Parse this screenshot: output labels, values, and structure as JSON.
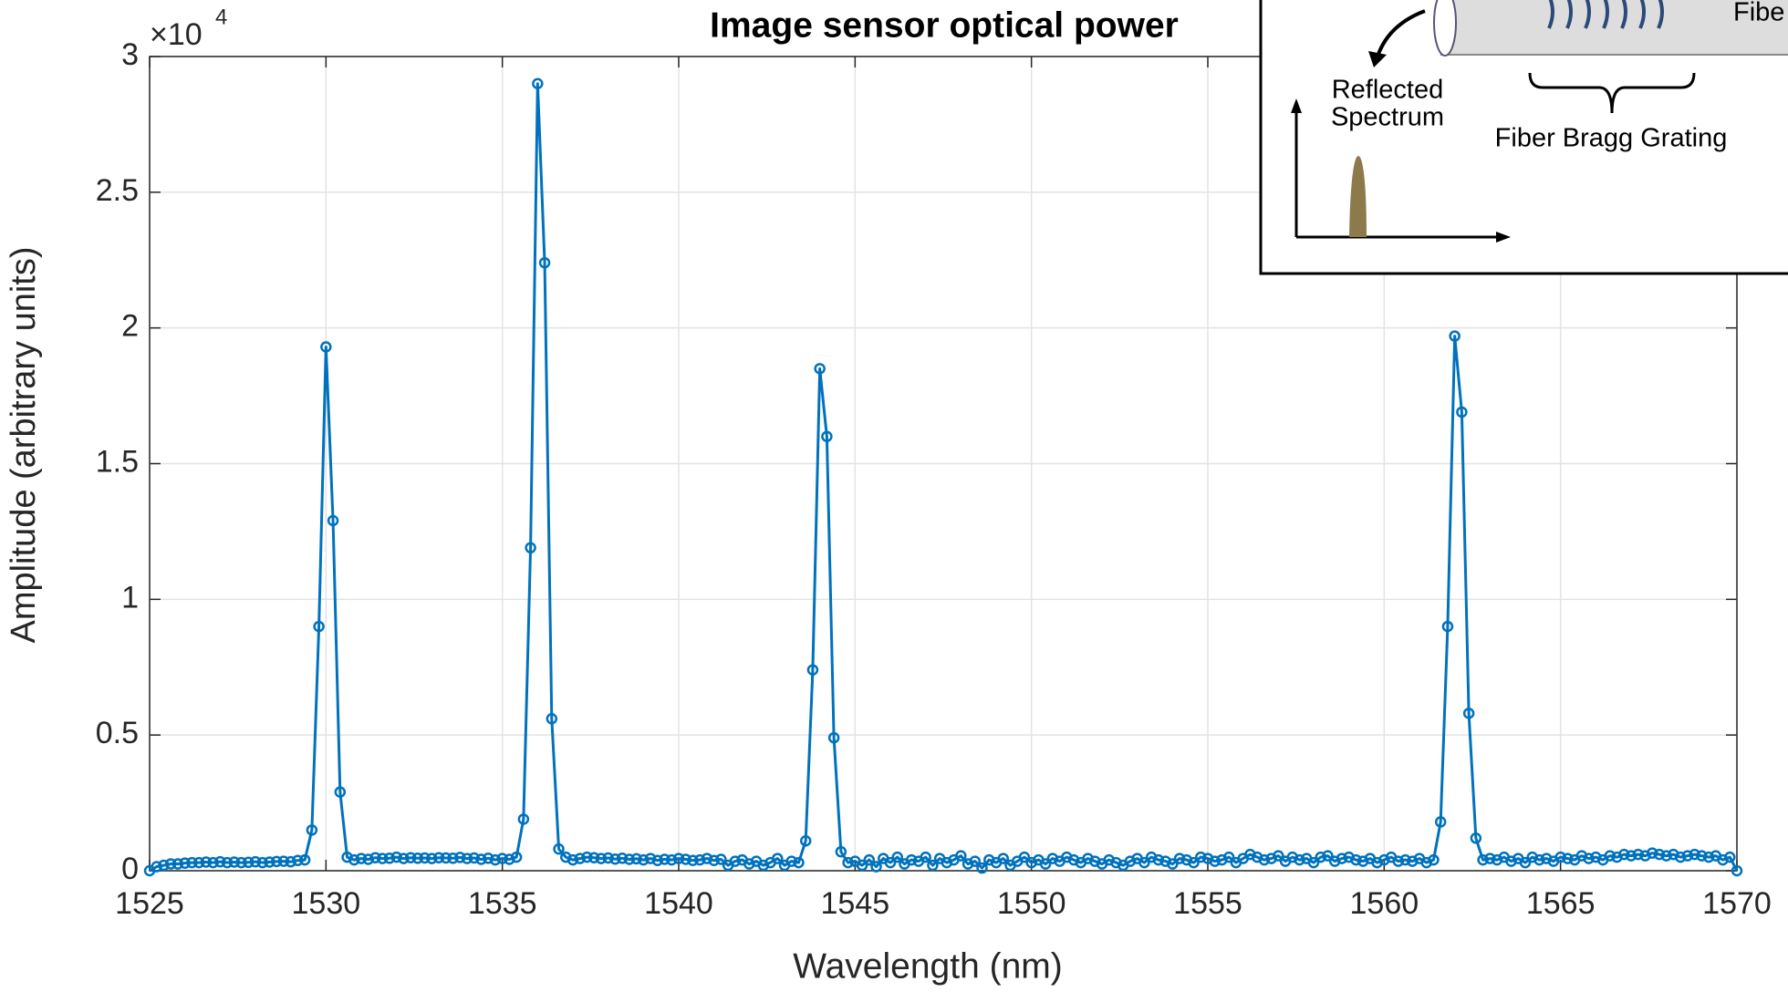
{
  "chart_data": {
    "type": "line",
    "title": "Image sensor optical power",
    "x_label": "Wavelength (nm)",
    "y_label": "Amplitude (arbitrary units)",
    "y_multiplier": {
      "base": "×10",
      "exponent": "4"
    },
    "x": [
      1525,
      1525.2,
      1525.4,
      1525.6,
      1525.8,
      1526,
      1526.2,
      1526.4,
      1526.6,
      1526.8,
      1527,
      1527.2,
      1527.4,
      1527.6,
      1527.8,
      1528,
      1528.2,
      1528.4,
      1528.6,
      1528.8,
      1529,
      1529.2,
      1529.4,
      1529.6,
      1529.8,
      1530,
      1530.2,
      1530.4,
      1530.6,
      1530.8,
      1531,
      1531.2,
      1531.4,
      1531.6,
      1531.8,
      1532,
      1532.2,
      1532.4,
      1532.6,
      1532.8,
      1533,
      1533.2,
      1533.4,
      1533.6,
      1533.8,
      1534,
      1534.2,
      1534.4,
      1534.6,
      1534.8,
      1535,
      1535.2,
      1535.4,
      1535.6,
      1535.8,
      1536,
      1536.2,
      1536.4,
      1536.6,
      1536.8,
      1537,
      1537.2,
      1537.4,
      1537.6,
      1537.8,
      1538,
      1538.2,
      1538.4,
      1538.6,
      1538.8,
      1539,
      1539.2,
      1539.4,
      1539.6,
      1539.8,
      1540,
      1540.2,
      1540.4,
      1540.6,
      1540.8,
      1541,
      1541.2,
      1541.4,
      1541.6,
      1541.8,
      1542,
      1542.2,
      1542.4,
      1542.6,
      1542.8,
      1543,
      1543.2,
      1543.4,
      1543.6,
      1543.8,
      1544,
      1544.2,
      1544.4,
      1544.6,
      1544.8,
      1545,
      1545.2,
      1545.4,
      1545.6,
      1545.8,
      1546,
      1546.2,
      1546.4,
      1546.6,
      1546.8,
      1547,
      1547.2,
      1547.4,
      1547.6,
      1547.8,
      1548,
      1548.2,
      1548.4,
      1548.6,
      1548.8,
      1549,
      1549.2,
      1549.4,
      1549.6,
      1549.8,
      1550,
      1550.2,
      1550.4,
      1550.6,
      1550.8,
      1551,
      1551.2,
      1551.4,
      1551.6,
      1551.8,
      1552,
      1552.2,
      1552.4,
      1552.6,
      1552.8,
      1553,
      1553.2,
      1553.4,
      1553.6,
      1553.8,
      1554,
      1554.2,
      1554.4,
      1554.6,
      1554.8,
      1555,
      1555.2,
      1555.4,
      1555.6,
      1555.8,
      1556,
      1556.2,
      1556.4,
      1556.6,
      1556.8,
      1557,
      1557.2,
      1557.4,
      1557.6,
      1557.8,
      1558,
      1558.2,
      1558.4,
      1558.6,
      1558.8,
      1559,
      1559.2,
      1559.4,
      1559.6,
      1559.8,
      1560,
      1560.2,
      1560.4,
      1560.6,
      1560.8,
      1561,
      1561.2,
      1561.4,
      1561.6,
      1561.8,
      1562,
      1562.2,
      1562.4,
      1562.6,
      1562.8,
      1563,
      1563.2,
      1563.4,
      1563.6,
      1563.8,
      1564,
      1564.2,
      1564.4,
      1564.6,
      1564.8,
      1565,
      1565.2,
      1565.4,
      1565.6,
      1565.8,
      1566,
      1566.2,
      1566.4,
      1566.6,
      1566.8,
      1567,
      1567.2,
      1567.4,
      1567.6,
      1567.8,
      1568,
      1568.2,
      1568.4,
      1568.6,
      1568.8,
      1569,
      1569.2,
      1569.4,
      1569.6,
      1569.8,
      1570
    ],
    "series": [
      {
        "color": "#0072bd",
        "values": [
          0,
          150,
          200,
          250,
          250,
          280,
          300,
          300,
          320,
          300,
          330,
          300,
          320,
          300,
          310,
          330,
          300,
          320,
          340,
          350,
          330,
          380,
          400,
          1500,
          9000,
          19300,
          12900,
          2900,
          500,
          400,
          450,
          420,
          480,
          450,
          460,
          500,
          450,
          480,
          460,
          470,
          450,
          480,
          470,
          460,
          490,
          450,
          470,
          420,
          460,
          400,
          450,
          420,
          500,
          1900,
          11900,
          29000,
          22400,
          5600,
          800,
          500,
          400,
          450,
          500,
          480,
          450,
          470,
          430,
          460,
          420,
          440,
          400,
          450,
          380,
          420,
          400,
          450,
          420,
          380,
          400,
          450,
          380,
          420,
          200,
          350,
          400,
          250,
          350,
          200,
          300,
          450,
          200,
          350,
          300,
          1100,
          7400,
          18500,
          16000,
          4900,
          700,
          300,
          350,
          200,
          400,
          150,
          450,
          300,
          500,
          250,
          400,
          350,
          500,
          200,
          450,
          300,
          400,
          550,
          250,
          350,
          100,
          400,
          300,
          450,
          200,
          350,
          500,
          300,
          400,
          250,
          450,
          350,
          500,
          400,
          300,
          450,
          350,
          250,
          400,
          300,
          200,
          350,
          450,
          300,
          500,
          400,
          350,
          250,
          450,
          400,
          300,
          500,
          450,
          350,
          400,
          500,
          300,
          450,
          600,
          500,
          400,
          450,
          550,
          350,
          500,
          400,
          450,
          300,
          500,
          550,
          350,
          450,
          500,
          400,
          350,
          450,
          300,
          400,
          500,
          350,
          400,
          350,
          450,
          300,
          400,
          1800,
          9000,
          19700,
          16900,
          5800,
          1200,
          400,
          450,
          400,
          500,
          350,
          450,
          300,
          500,
          400,
          450,
          350,
          500,
          450,
          400,
          550,
          450,
          500,
          400,
          550,
          500,
          600,
          550,
          600,
          550,
          650,
          600,
          550,
          600,
          500,
          550,
          600,
          550,
          500,
          550,
          400,
          500,
          0
        ]
      }
    ],
    "xlim": [
      1525,
      1570
    ],
    "xticks": [
      1525,
      1530,
      1535,
      1540,
      1545,
      1550,
      1555,
      1560,
      1565,
      1570
    ],
    "ylim": [
      0,
      30000
    ],
    "yticks": [
      {
        "value": 0,
        "label": "0"
      },
      {
        "value": 5000,
        "label": "0.5"
      },
      {
        "value": 10000,
        "label": "1"
      },
      {
        "value": 15000,
        "label": "1.5"
      },
      {
        "value": 20000,
        "label": "2"
      },
      {
        "value": 25000,
        "label": "2.5"
      },
      {
        "value": 30000,
        "label": "3"
      }
    ],
    "grid": true
  },
  "inset": {
    "fiber_label": "Fibe",
    "reflected_label": [
      "Reflected",
      "Spectrum"
    ],
    "grating_label": "Fiber Bragg Grating"
  }
}
